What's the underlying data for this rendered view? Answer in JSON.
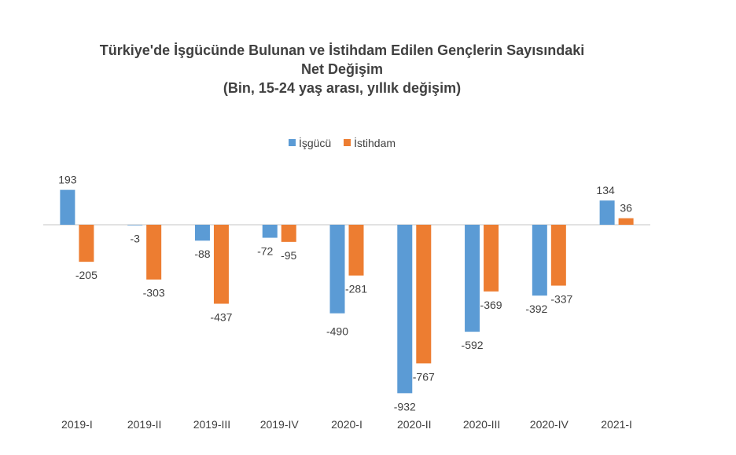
{
  "chart_data": {
    "type": "bar",
    "title_lines": [
      "Türkiye'de İşgücünde Bulunan ve İstihdam Edilen Gençlerin Sayısındaki",
      "Net Değişim",
      "(Bin, 15-24 yaş arası, yıllık değişim)"
    ],
    "categories": [
      "2019-I",
      "2019-II",
      "2019-III",
      "2019-IV",
      "2020-I",
      "2020-II",
      "2020-III",
      "2020-IV",
      "2021-I"
    ],
    "series": [
      {
        "name": "İşgücü",
        "color": "#5B9BD5",
        "values": [
          193,
          -3,
          -88,
          -72,
          -490,
          -932,
          -592,
          -392,
          134
        ]
      },
      {
        "name": "İstihdam",
        "color": "#ED7D31",
        "values": [
          -205,
          -303,
          -437,
          -95,
          -281,
          -767,
          -369,
          -337,
          36
        ]
      }
    ],
    "legend_position": "top",
    "grid": false,
    "xlabel": "",
    "ylabel": ""
  }
}
